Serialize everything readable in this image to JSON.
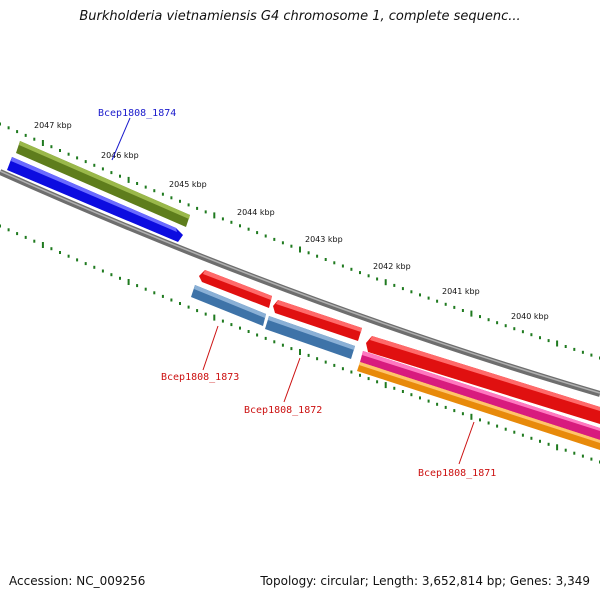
{
  "header": {
    "title": "Burkholderia vietnamiensis G4 chromosome 1, complete sequenc..."
  },
  "footer": {
    "accession": "Accession: NC_009256",
    "summary": "Topology: circular; Length: 3,652,814 bp; Genes: 3,349"
  },
  "scale": {
    "ticks": [
      "2047 kbp",
      "2046 kbp",
      "2045 kbp",
      "2044 kbp",
      "2043 kbp",
      "2042 kbp",
      "2041 kbp",
      "2040 kbp"
    ]
  },
  "genes": {
    "bcep1808_1874": "Bcep1808_1874",
    "bcep1808_1873": "Bcep1808_1873",
    "bcep1808_1872": "Bcep1808_1872",
    "bcep1808_1871": "Bcep1808_1871"
  },
  "colors": {
    "backbone": "#7a7a7a",
    "scale_dots": "#1f7a1f",
    "gene_blue": "#1414f0",
    "gene_olive": "#6b8e23",
    "gene_red": "#ee1111",
    "gene_steelblue": "#4a7fb5",
    "gene_magenta": "#e0208a",
    "gene_orange": "#f39a12",
    "label_blue": "#1a1acc",
    "label_red": "#cc1111"
  }
}
